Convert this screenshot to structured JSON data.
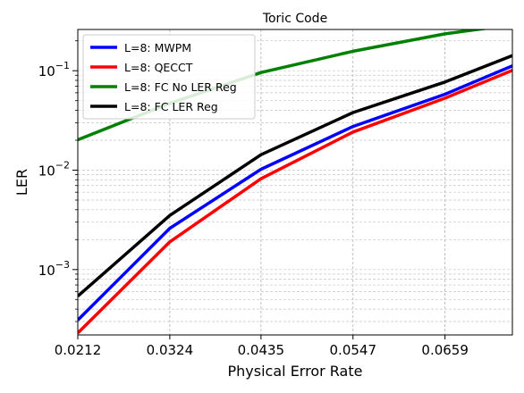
{
  "chart_data": {
    "type": "line",
    "title": "Toric Code",
    "xlabel": "Physical Error Rate",
    "ylabel": "LER",
    "yscale": "log",
    "xlim": [
      0.0212,
      0.0741
    ],
    "ylim": [
      0.00022,
      0.26
    ],
    "grid": true,
    "legend_position": "top-left",
    "x_ticks": [
      {
        "value": 0.0212,
        "label": "0.0212"
      },
      {
        "value": 0.0324,
        "label": "0.0324"
      },
      {
        "value": 0.0435,
        "label": "0.0435"
      },
      {
        "value": 0.0547,
        "label": "0.0547"
      },
      {
        "value": 0.0659,
        "label": "0.0659"
      }
    ],
    "y_ticks": [
      {
        "value": 0.001,
        "base": "10",
        "exp": "−3"
      },
      {
        "value": 0.01,
        "base": "10",
        "exp": "−2"
      },
      {
        "value": 0.1,
        "base": "10",
        "exp": "−1"
      }
    ],
    "x": [
      0.0212,
      0.0324,
      0.0435,
      0.0547,
      0.0659,
      0.0741
    ],
    "series": [
      {
        "name": "L=8: MWPM",
        "color": "#0000ff",
        "values": [
          0.00031,
          0.0026,
          0.0102,
          0.0275,
          0.058,
          0.112
        ]
      },
      {
        "name": "L=8: QECCT",
        "color": "#ff0000",
        "values": [
          0.00023,
          0.0019,
          0.0082,
          0.0242,
          0.053,
          0.101
        ]
      },
      {
        "name": "L=8: FC No LER Reg",
        "color": "#008000",
        "values": [
          0.0202,
          0.047,
          0.096,
          0.157,
          0.235,
          0.29
        ]
      },
      {
        "name": "L=8: FC LER Reg",
        "color": "#000000",
        "values": [
          0.00054,
          0.0035,
          0.0143,
          0.038,
          0.077,
          0.142
        ]
      }
    ]
  }
}
